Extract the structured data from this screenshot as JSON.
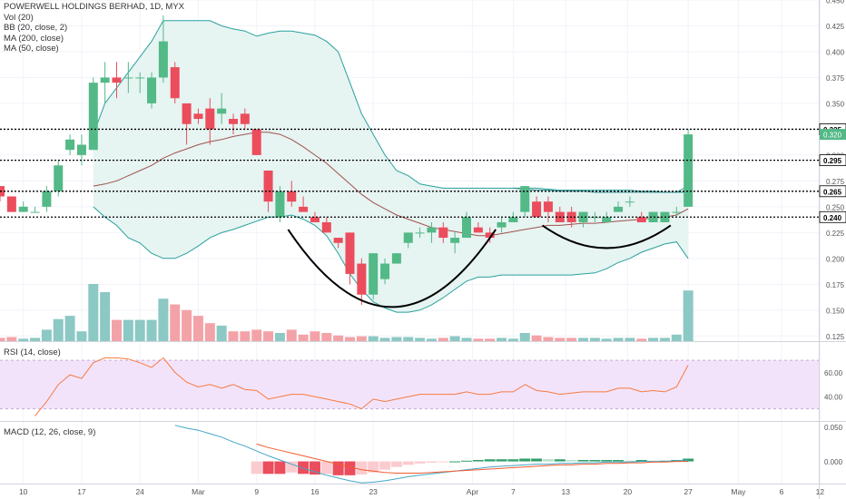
{
  "chart_data": {
    "type": "candlestick",
    "title": "POWERWELL HOLDINGS BERHAD, 1D, MYX",
    "indicators": [
      "Vol (20)",
      "BB (20, close, 2)",
      "MA (200, close)",
      "MA (50, close)"
    ],
    "price_axis": {
      "ticks": [
        "0.125",
        "0.150",
        "0.175",
        "0.200",
        "0.225",
        "0.250",
        "0.275",
        "0.300",
        "0.325",
        "0.350",
        "0.375",
        "0.400",
        "0.425",
        "0.450"
      ],
      "range": [
        0.12,
        0.45
      ]
    },
    "x_ticks": [
      {
        "label": "10",
        "idx": 2
      },
      {
        "label": "17",
        "idx": 7
      },
      {
        "label": "24",
        "idx": 12
      },
      {
        "label": "Mar",
        "idx": 17
      },
      {
        "label": "9",
        "idx": 22
      },
      {
        "label": "16",
        "idx": 27
      },
      {
        "label": "23",
        "idx": 32
      },
      {
        "label": "Apr",
        "idx": 40.5
      },
      {
        "label": "7",
        "idx": 44
      },
      {
        "label": "13",
        "idx": 48.5
      },
      {
        "label": "20",
        "idx": 53.8
      },
      {
        "label": "27",
        "idx": 59
      },
      {
        "label": "May",
        "idx": 63.3
      },
      {
        "label": "6",
        "idx": 67
      },
      {
        "label": "12",
        "idx": 70.3
      }
    ],
    "horizontal_levels": [
      {
        "label": "0.325",
        "value": 0.325,
        "bg": "#ffffff",
        "fg": "#000000",
        "label_value": 0.325
      },
      {
        "label": "0.295",
        "value": 0.295,
        "bg": "#ffffff",
        "fg": "#000000",
        "label_value": 0.295
      },
      {
        "label": "0.265",
        "value": 0.265,
        "bg": "#ffffff",
        "fg": "#000000",
        "label_value": 0.265
      },
      {
        "label": "0.240",
        "value": 0.24,
        "bg": "#ffffff",
        "fg": "#000000",
        "label_value": 0.24
      }
    ],
    "last_price_label": {
      "label": "0.320",
      "value": 0.32,
      "color": "#53b987"
    },
    "candles": [
      [
        0.27,
        0.27,
        0.255,
        0.26
      ],
      [
        0.26,
        0.26,
        0.245,
        0.245
      ],
      [
        0.245,
        0.255,
        0.245,
        0.25
      ],
      [
        0.245,
        0.25,
        0.245,
        0.245
      ],
      [
        0.25,
        0.27,
        0.245,
        0.265
      ],
      [
        0.265,
        0.295,
        0.26,
        0.29
      ],
      [
        0.305,
        0.32,
        0.3,
        0.315
      ],
      [
        0.3,
        0.32,
        0.29,
        0.31
      ],
      [
        0.305,
        0.375,
        0.305,
        0.37
      ],
      [
        0.37,
        0.39,
        0.35,
        0.375
      ],
      [
        0.375,
        0.39,
        0.355,
        0.37
      ],
      [
        0.375,
        0.39,
        0.36,
        0.375
      ],
      [
        0.375,
        0.38,
        0.36,
        0.375
      ],
      [
        0.35,
        0.38,
        0.345,
        0.375
      ],
      [
        0.375,
        0.435,
        0.37,
        0.41
      ],
      [
        0.385,
        0.39,
        0.35,
        0.355
      ],
      [
        0.35,
        0.35,
        0.31,
        0.33
      ],
      [
        0.34,
        0.345,
        0.33,
        0.335
      ],
      [
        0.345,
        0.355,
        0.31,
        0.325
      ],
      [
        0.34,
        0.36,
        0.33,
        0.345
      ],
      [
        0.335,
        0.34,
        0.32,
        0.33
      ],
      [
        0.34,
        0.345,
        0.325,
        0.33
      ],
      [
        0.325,
        0.325,
        0.3,
        0.3
      ],
      [
        0.285,
        0.285,
        0.245,
        0.255
      ],
      [
        0.24,
        0.27,
        0.235,
        0.265
      ],
      [
        0.265,
        0.275,
        0.25,
        0.255
      ],
      [
        0.25,
        0.26,
        0.245,
        0.245
      ],
      [
        0.24,
        0.245,
        0.235,
        0.235
      ],
      [
        0.235,
        0.24,
        0.225,
        0.225
      ],
      [
        0.22,
        0.22,
        0.21,
        0.215
      ],
      [
        0.225,
        0.225,
        0.175,
        0.185
      ],
      [
        0.195,
        0.2,
        0.155,
        0.165
      ],
      [
        0.165,
        0.205,
        0.16,
        0.205
      ],
      [
        0.18,
        0.2,
        0.175,
        0.195
      ],
      [
        0.195,
        0.205,
        0.195,
        0.205
      ],
      [
        0.215,
        0.225,
        0.21,
        0.225
      ],
      [
        0.225,
        0.23,
        0.22,
        0.225
      ],
      [
        0.225,
        0.235,
        0.215,
        0.23
      ],
      [
        0.23,
        0.235,
        0.215,
        0.22
      ],
      [
        0.215,
        0.225,
        0.205,
        0.22
      ],
      [
        0.22,
        0.245,
        0.22,
        0.24
      ],
      [
        0.23,
        0.235,
        0.225,
        0.225
      ],
      [
        0.225,
        0.23,
        0.215,
        0.22
      ],
      [
        0.23,
        0.24,
        0.225,
        0.235
      ],
      [
        0.235,
        0.245,
        0.235,
        0.24
      ],
      [
        0.245,
        0.27,
        0.24,
        0.27
      ],
      [
        0.255,
        0.26,
        0.24,
        0.24
      ],
      [
        0.255,
        0.26,
        0.235,
        0.245
      ],
      [
        0.245,
        0.25,
        0.235,
        0.235
      ],
      [
        0.245,
        0.25,
        0.23,
        0.235
      ],
      [
        0.235,
        0.245,
        0.23,
        0.245
      ],
      [
        0.24,
        0.245,
        0.235,
        0.24
      ],
      [
        0.235,
        0.245,
        0.235,
        0.24
      ],
      [
        0.245,
        0.255,
        0.245,
        0.25
      ],
      [
        0.255,
        0.26,
        0.25,
        0.255
      ],
      [
        0.24,
        0.245,
        0.235,
        0.235
      ],
      [
        0.235,
        0.245,
        0.235,
        0.245
      ],
      [
        0.235,
        0.245,
        0.235,
        0.245
      ],
      [
        0.245,
        0.25,
        0.24,
        0.245
      ],
      [
        0.25,
        0.325,
        0.25,
        0.32
      ]
    ],
    "volume_rel": [
      0.04,
      0.05,
      0.03,
      0.04,
      0.14,
      0.27,
      0.31,
      0.12,
      0.7,
      0.6,
      0.26,
      0.26,
      0.26,
      0.26,
      0.52,
      0.45,
      0.38,
      0.31,
      0.22,
      0.19,
      0.12,
      0.12,
      0.14,
      0.12,
      0.1,
      0.14,
      0.08,
      0.12,
      0.1,
      0.07,
      0.05,
      0.06,
      0.06,
      0.04,
      0.05,
      0.05,
      0.04,
      0.03,
      0.04,
      0.06,
      0.04,
      0.03,
      0.03,
      0.04,
      0.03,
      0.1,
      0.07,
      0.05,
      0.04,
      0.04,
      0.04,
      0.04,
      0.03,
      0.04,
      0.04,
      0.03,
      0.04,
      0.04,
      0.08,
      0.62
    ],
    "bollinger": {
      "upper": [
        null,
        null,
        null,
        null,
        null,
        null,
        null,
        null,
        0.32,
        0.35,
        0.365,
        0.38,
        0.395,
        0.41,
        0.43,
        0.43,
        0.43,
        0.43,
        0.43,
        0.425,
        0.422,
        0.42,
        0.415,
        0.418,
        0.42,
        0.42,
        0.418,
        0.416,
        0.41,
        0.4,
        0.37,
        0.34,
        0.32,
        0.3,
        0.285,
        0.28,
        0.272,
        0.27,
        0.268,
        0.268,
        0.268,
        0.268,
        0.268,
        0.268,
        0.268,
        0.268,
        0.268,
        0.267,
        0.266,
        0.266,
        0.266,
        0.266,
        0.266,
        0.266,
        0.266,
        0.265,
        0.265,
        0.264,
        0.264,
        0.27
      ],
      "lower": [
        null,
        null,
        null,
        null,
        null,
        null,
        null,
        null,
        0.25,
        0.24,
        0.232,
        0.22,
        0.215,
        0.205,
        0.2,
        0.2,
        0.205,
        0.212,
        0.22,
        0.225,
        0.228,
        0.232,
        0.236,
        0.24,
        0.24,
        0.242,
        0.238,
        0.232,
        0.222,
        0.205,
        0.185,
        0.17,
        0.158,
        0.152,
        0.148,
        0.148,
        0.15,
        0.155,
        0.162,
        0.17,
        0.178,
        0.182,
        0.182,
        0.184,
        0.184,
        0.184,
        0.184,
        0.184,
        0.184,
        0.184,
        0.185,
        0.186,
        0.19,
        0.196,
        0.2,
        0.206,
        0.21,
        0.214,
        0.216,
        0.2
      ]
    },
    "ma50": [
      null,
      null,
      null,
      null,
      null,
      null,
      null,
      null,
      0.27,
      0.272,
      0.275,
      0.28,
      0.285,
      0.29,
      0.297,
      0.302,
      0.306,
      0.31,
      0.313,
      0.315,
      0.318,
      0.32,
      0.322,
      0.322,
      0.32,
      0.315,
      0.308,
      0.3,
      0.292,
      0.282,
      0.272,
      0.262,
      0.254,
      0.248,
      0.242,
      0.238,
      0.234,
      0.23,
      0.228,
      0.226,
      0.224,
      0.222,
      0.222,
      0.224,
      0.226,
      0.228,
      0.23,
      0.232,
      0.232,
      0.233,
      0.234,
      0.234,
      0.235,
      0.236,
      0.237,
      0.238,
      0.239,
      0.24,
      0.242,
      0.248
    ],
    "ma200": [
      null,
      null,
      null,
      null,
      null,
      null,
      null,
      null,
      null,
      null,
      null,
      null,
      null,
      null,
      null,
      null,
      null,
      null,
      null,
      null,
      null,
      null,
      null,
      null,
      null,
      null,
      null,
      null,
      null,
      null,
      null,
      null,
      null,
      null,
      null,
      null,
      null,
      null,
      null,
      null,
      null,
      null,
      null,
      null,
      0.268,
      0.267,
      0.266,
      0.266,
      0.265,
      0.265,
      0.265,
      0.264,
      0.264,
      0.264,
      0.264,
      0.264,
      0.264,
      0.264,
      0.264,
      0.264
    ],
    "cup_arcs": [
      {
        "from_idx": 24.7,
        "to_idx": 42.5,
        "top": 0.228,
        "bottom": 0.153
      },
      {
        "from_idx": 46.5,
        "to_idx": 57.5,
        "top": 0.232,
        "bottom": 0.21
      }
    ],
    "rsi": {
      "label": "RSI (14, close)",
      "ticks": [
        "40.00",
        "60.00"
      ],
      "range": [
        20,
        85
      ],
      "band": [
        30,
        70
      ],
      "values": [
        null,
        null,
        null,
        24,
        36,
        50,
        58,
        55,
        68,
        72,
        72,
        71,
        68,
        64,
        72,
        60,
        52,
        48,
        50,
        47,
        50,
        46,
        45,
        38,
        40,
        42,
        42,
        40,
        38,
        36,
        34,
        30,
        38,
        36,
        38,
        40,
        42,
        42,
        42,
        42,
        44,
        42,
        42,
        44,
        44,
        50,
        45,
        44,
        42,
        43,
        44,
        44,
        44,
        47,
        47,
        44,
        45,
        44,
        48,
        66
      ]
    },
    "macd": {
      "label": "MACD (12, 26, close, 9)",
      "ticks": [
        "0.050",
        "0.000"
      ],
      "range": [
        -0.032,
        0.057
      ],
      "macd": [
        null,
        null,
        null,
        null,
        null,
        null,
        null,
        null,
        null,
        null,
        null,
        null,
        null,
        null,
        null,
        0.052,
        0.048,
        0.045,
        0.04,
        0.035,
        0.028,
        0.022,
        0.015,
        0.008,
        0.002,
        -0.004,
        -0.01,
        -0.015,
        -0.02,
        -0.024,
        -0.028,
        -0.031,
        -0.03,
        -0.028,
        -0.025,
        -0.022,
        -0.02,
        -0.018,
        -0.016,
        -0.014,
        -0.012,
        -0.01,
        -0.008,
        -0.007,
        -0.006,
        -0.005,
        -0.004,
        -0.004,
        -0.003,
        -0.003,
        -0.002,
        -0.002,
        -0.001,
        -0.001,
        -0.001,
        0.0,
        0.0,
        0.0,
        0.001,
        0.002
      ],
      "signal": [
        null,
        null,
        null,
        null,
        null,
        null,
        null,
        null,
        null,
        null,
        null,
        null,
        null,
        null,
        null,
        null,
        null,
        null,
        null,
        null,
        null,
        null,
        0.025,
        0.02,
        0.016,
        0.012,
        0.008,
        0.004,
        0.0,
        -0.004,
        -0.008,
        -0.012,
        -0.014,
        -0.016,
        -0.017,
        -0.017,
        -0.017,
        -0.016,
        -0.015,
        -0.014,
        -0.013,
        -0.012,
        -0.011,
        -0.01,
        -0.009,
        -0.008,
        -0.007,
        -0.006,
        -0.005,
        -0.005,
        -0.004,
        -0.004,
        -0.003,
        -0.003,
        -0.002,
        -0.002,
        -0.001,
        -0.001,
        0.0,
        0.0
      ],
      "hist": [
        null,
        null,
        null,
        null,
        null,
        null,
        null,
        null,
        null,
        null,
        null,
        null,
        null,
        null,
        null,
        null,
        null,
        null,
        null,
        null,
        null,
        null,
        -0.018,
        -0.018,
        -0.018,
        -0.016,
        -0.018,
        -0.019,
        -0.018,
        -0.02,
        -0.02,
        -0.019,
        -0.016,
        -0.012,
        -0.008,
        -0.005,
        -0.003,
        -0.002,
        -0.001,
        0.0,
        0.001,
        0.002,
        0.003,
        0.003,
        0.003,
        0.004,
        0.004,
        0.003,
        0.003,
        0.002,
        0.002,
        0.002,
        0.002,
        0.002,
        0.001,
        0.002,
        0.001,
        0.001,
        0.002,
        0.004
      ]
    }
  },
  "colors": {
    "up": "#53b987",
    "down": "#eb4d5c",
    "vol_up": "#8cc8c4",
    "vol_down": "#f3a3a8",
    "bb_line": "#29a19c",
    "bb_fill": "#e6f4f2",
    "ma50": "#a0524d",
    "ma200": "#2c8c8c",
    "rsi_line": "#f57b41",
    "rsi_band": "#f3e3fa",
    "macd_line": "#42a6c7",
    "signal_line": "#f25c2f",
    "hist_up": "#2f9e6a",
    "hist_up_light": "#b2dfcc",
    "hist_down": "#eb4d5c",
    "hist_down_light": "#fbcbcf"
  }
}
